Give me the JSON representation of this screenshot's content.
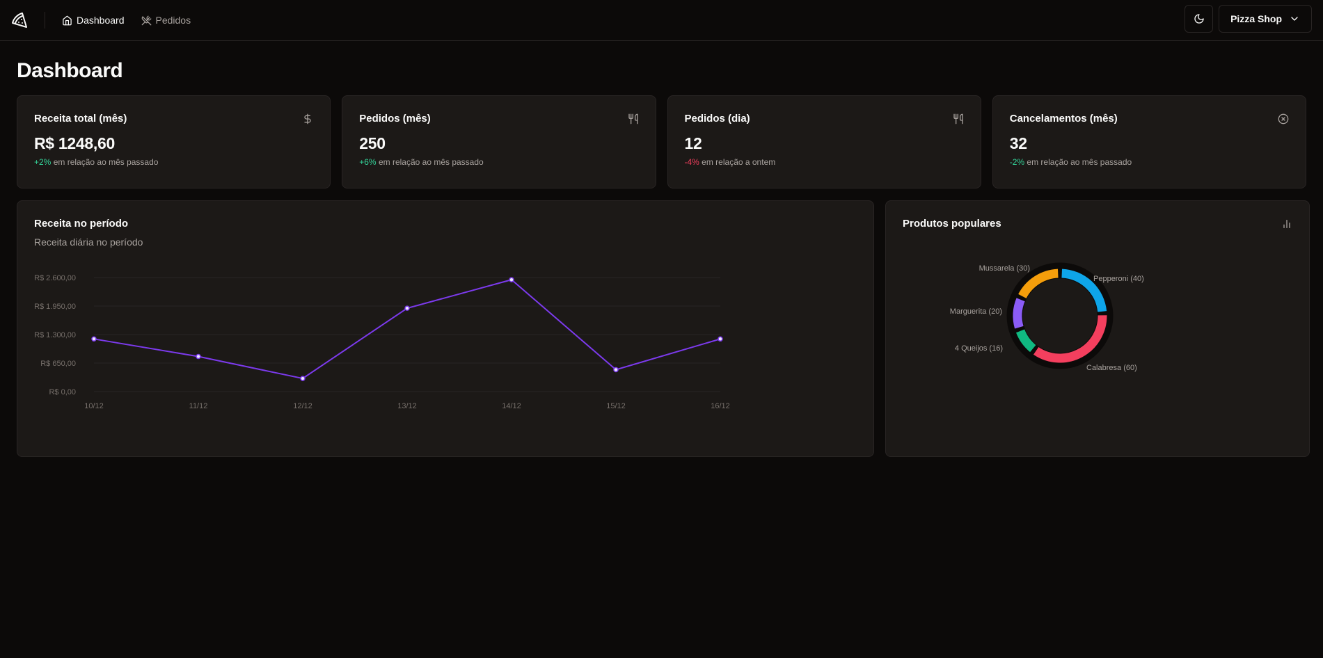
{
  "header": {
    "nav": [
      {
        "label": "Dashboard",
        "icon": "home-icon",
        "active": true
      },
      {
        "label": "Pedidos",
        "icon": "utensils-crossed-icon",
        "active": false
      }
    ],
    "shop_name": "Pizza Shop"
  },
  "page": {
    "title": "Dashboard"
  },
  "stats": [
    {
      "title": "Receita total (mês)",
      "value": "R$ 1248,60",
      "delta": "+2%",
      "delta_text": " em relação ao mês passado",
      "trend": "pos",
      "icon": "dollar-icon"
    },
    {
      "title": "Pedidos (mês)",
      "value": "250",
      "delta": "+6%",
      "delta_text": " em relação ao mês passado",
      "trend": "pos",
      "icon": "utensils-icon"
    },
    {
      "title": "Pedidos (dia)",
      "value": "12",
      "delta": "-4%",
      "delta_text": " em relação a ontem",
      "trend": "neg",
      "icon": "utensils-icon"
    },
    {
      "title": "Cancelamentos (mês)",
      "value": "32",
      "delta": "-2%",
      "delta_text": " em relação ao mês passado",
      "trend": "pos",
      "icon": "circle-x-icon"
    }
  ],
  "revenue_card": {
    "title": "Receita no período",
    "subtitle": "Receita diária no período"
  },
  "popular_card": {
    "title": "Produtos populares"
  },
  "colors": {
    "line": "#7c3aed",
    "pie": [
      "#0ea5e9",
      "#f43f5e",
      "#10b981",
      "#8b5cf6",
      "#f59e0b"
    ]
  },
  "chart_data": [
    {
      "type": "line",
      "title": "Receita no período",
      "categories": [
        "10/12",
        "11/12",
        "12/12",
        "13/12",
        "14/12",
        "15/12",
        "16/12"
      ],
      "values": [
        1200,
        800,
        300,
        1900,
        2550,
        500,
        1200
      ],
      "yticks": [
        0,
        650,
        1300,
        1950,
        2600
      ],
      "ytick_labels": [
        "R$ 0,00",
        "R$ 650,00",
        "R$ 1.300,00",
        "R$ 1.950,00",
        "R$ 2.600,00"
      ],
      "ylim": [
        0,
        2600
      ],
      "grid": true
    },
    {
      "type": "pie",
      "title": "Produtos populares",
      "labels": [
        "Pepperoni",
        "Calabresa",
        "4 Queijos",
        "Marguerita",
        "Mussarela"
      ],
      "values": [
        40,
        60,
        16,
        20,
        30
      ],
      "display_labels": [
        "Pepperoni (40)",
        "Calabresa (60)",
        "4 Queijos (16)",
        "Marguerita (20)",
        "Mussarela (30)"
      ]
    }
  ]
}
